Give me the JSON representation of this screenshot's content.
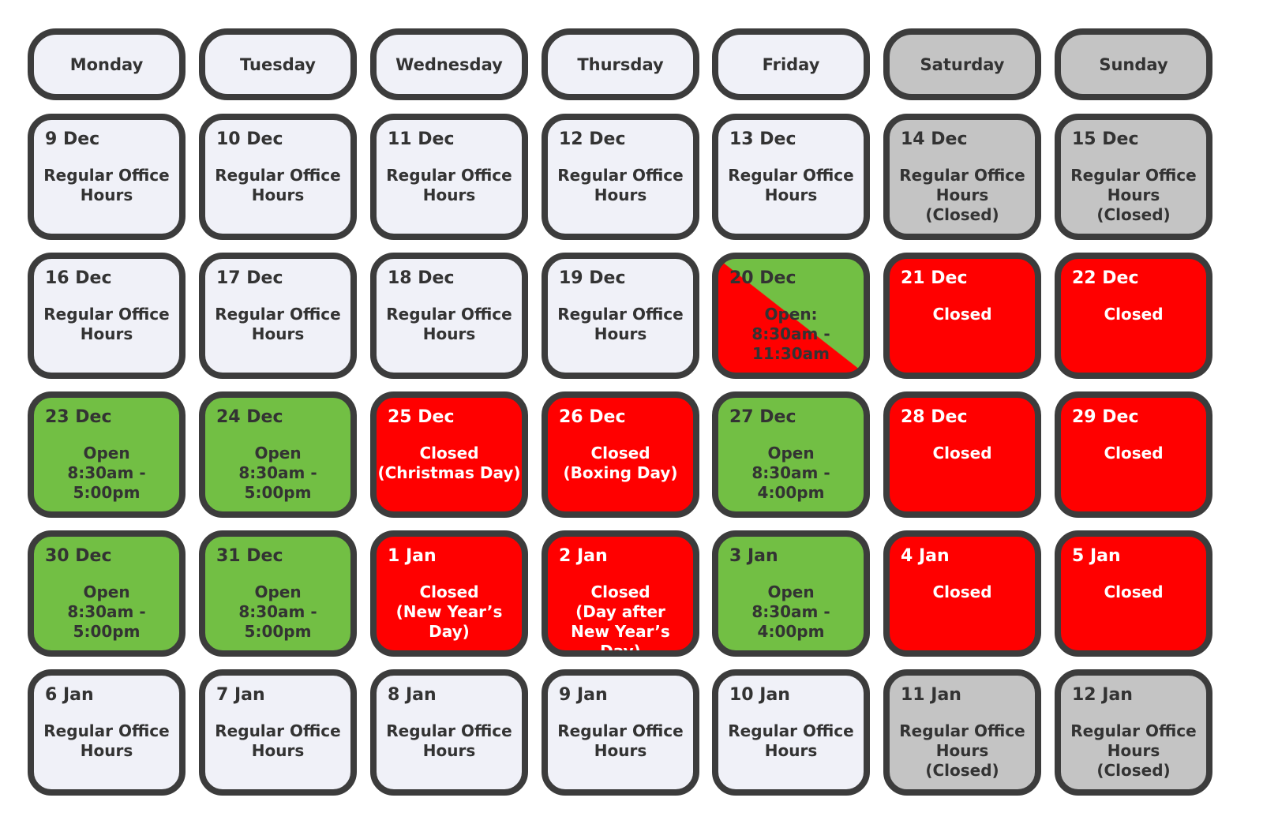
{
  "calendar": {
    "weekdays": [
      {
        "label": "Monday",
        "weekend": false
      },
      {
        "label": "Tuesday",
        "weekend": false
      },
      {
        "label": "Wednesday",
        "weekend": false
      },
      {
        "label": "Thursday",
        "weekend": false
      },
      {
        "label": "Friday",
        "weekend": false
      },
      {
        "label": "Saturday",
        "weekend": true
      },
      {
        "label": "Sunday",
        "weekend": true
      }
    ],
    "weeks": [
      [
        {
          "date": "9 Dec",
          "status": "Regular Office\nHours",
          "type": "regular"
        },
        {
          "date": "10 Dec",
          "status": "Regular Office\nHours",
          "type": "regular"
        },
        {
          "date": "11 Dec",
          "status": "Regular Office\nHours",
          "type": "regular"
        },
        {
          "date": "12 Dec",
          "status": "Regular Office\nHours",
          "type": "regular"
        },
        {
          "date": "13 Dec",
          "status": "Regular Office\nHours",
          "type": "regular"
        },
        {
          "date": "14 Dec",
          "status": "Regular Office\nHours\n(Closed)",
          "type": "weekend"
        },
        {
          "date": "15 Dec",
          "status": "Regular Office\nHours\n(Closed)",
          "type": "weekend"
        }
      ],
      [
        {
          "date": "16 Dec",
          "status": "Regular Office\nHours",
          "type": "regular"
        },
        {
          "date": "17 Dec",
          "status": "Regular Office\nHours",
          "type": "regular"
        },
        {
          "date": "18 Dec",
          "status": "Regular Office\nHours",
          "type": "regular"
        },
        {
          "date": "19 Dec",
          "status": "Regular Office\nHours",
          "type": "regular"
        },
        {
          "date": "20 Dec",
          "status": "Open:\n8:30am - 11:30am",
          "type": "split"
        },
        {
          "date": "21 Dec",
          "status": "Closed",
          "type": "closed"
        },
        {
          "date": "22 Dec",
          "status": "Closed",
          "type": "closed"
        }
      ],
      [
        {
          "date": "23 Dec",
          "status": "Open\n8:30am - 5:00pm",
          "type": "open"
        },
        {
          "date": "24 Dec",
          "status": "Open\n8:30am - 5:00pm",
          "type": "open"
        },
        {
          "date": "25 Dec",
          "status": "Closed\n(Christmas Day)",
          "type": "closed"
        },
        {
          "date": "26 Dec",
          "status": "Closed\n(Boxing Day)",
          "type": "closed"
        },
        {
          "date": "27 Dec",
          "status": "Open\n8:30am - 4:00pm",
          "type": "open"
        },
        {
          "date": "28 Dec",
          "status": "Closed",
          "type": "closed"
        },
        {
          "date": "29 Dec",
          "status": "Closed",
          "type": "closed"
        }
      ],
      [
        {
          "date": "30 Dec",
          "status": "Open\n8:30am - 5:00pm",
          "type": "open"
        },
        {
          "date": "31 Dec",
          "status": "Open\n8:30am - 5:00pm",
          "type": "open"
        },
        {
          "date": "1 Jan",
          "status": "Closed\n(New Year’s Day)",
          "type": "closed"
        },
        {
          "date": "2 Jan",
          "status": "Closed\n(Day after\nNew Year’s Day)",
          "type": "closed"
        },
        {
          "date": "3 Jan",
          "status": "Open\n8:30am - 4:00pm",
          "type": "open"
        },
        {
          "date": "4 Jan",
          "status": "Closed",
          "type": "closed"
        },
        {
          "date": "5 Jan",
          "status": "Closed",
          "type": "closed"
        }
      ],
      [
        {
          "date": "6 Jan",
          "status": "Regular Office\nHours",
          "type": "regular"
        },
        {
          "date": "7 Jan",
          "status": "Regular Office\nHours",
          "type": "regular"
        },
        {
          "date": "8 Jan",
          "status": "Regular Office\nHours",
          "type": "regular"
        },
        {
          "date": "9 Jan",
          "status": "Regular Office\nHours",
          "type": "regular"
        },
        {
          "date": "10 Jan",
          "status": "Regular Office\nHours",
          "type": "regular"
        },
        {
          "date": "11 Jan",
          "status": "Regular Office\nHours\n(Closed)",
          "type": "weekend"
        },
        {
          "date": "12 Jan",
          "status": "Regular Office\nHours\n(Closed)",
          "type": "weekend"
        }
      ]
    ]
  },
  "colors": {
    "regular": "#f0f1f8",
    "weekend": "#c4c4c4",
    "open": "#72bf44",
    "closed": "#ff0000",
    "border": "#3c3c3c",
    "text_dark": "#333333",
    "text_light": "#ffffff"
  }
}
